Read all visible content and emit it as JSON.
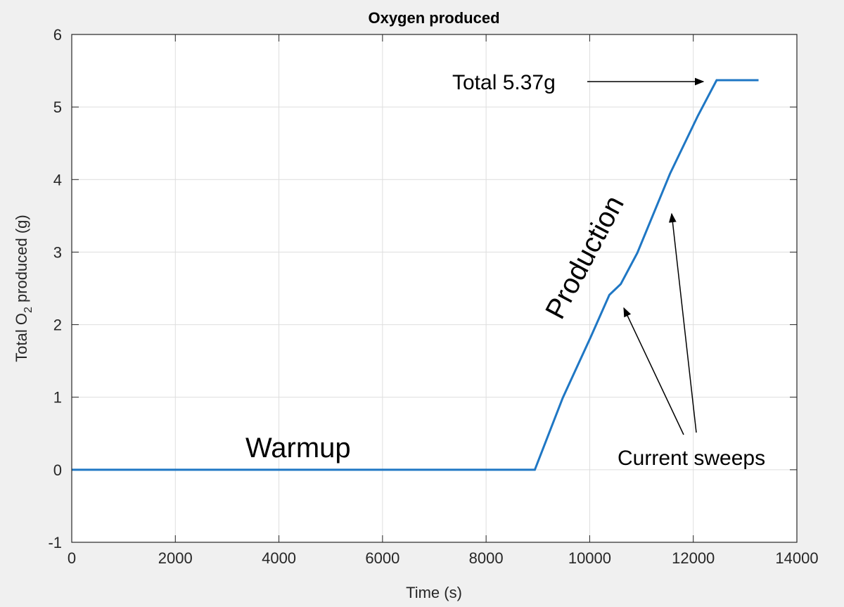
{
  "chart_data": {
    "type": "line",
    "title": "Oxygen produced",
    "xlabel": "Time (s)",
    "ylabel": {
      "prefix": "Total O",
      "subscript": "2",
      "suffix": " produced (g)"
    },
    "xlim": [
      0,
      14000
    ],
    "ylim": [
      -1,
      6
    ],
    "xticks": [
      0,
      2000,
      4000,
      6000,
      8000,
      10000,
      12000,
      14000
    ],
    "yticks": [
      -1,
      0,
      1,
      2,
      3,
      4,
      5,
      6
    ],
    "grid": true,
    "series": [
      {
        "color": "#1f77c4",
        "x": [
          0,
          8940,
          9480,
          10020,
          10380,
          10600,
          10920,
          11550,
          12090,
          12450,
          13260
        ],
        "y": [
          0,
          0,
          0.99,
          1.83,
          2.41,
          2.56,
          2.99,
          4.08,
          4.88,
          5.37,
          5.37
        ]
      }
    ],
    "annotations": {
      "total": "Total 5.37g",
      "production": "Production",
      "warmup": "Warmup",
      "sweeps": "Current sweeps"
    }
  }
}
